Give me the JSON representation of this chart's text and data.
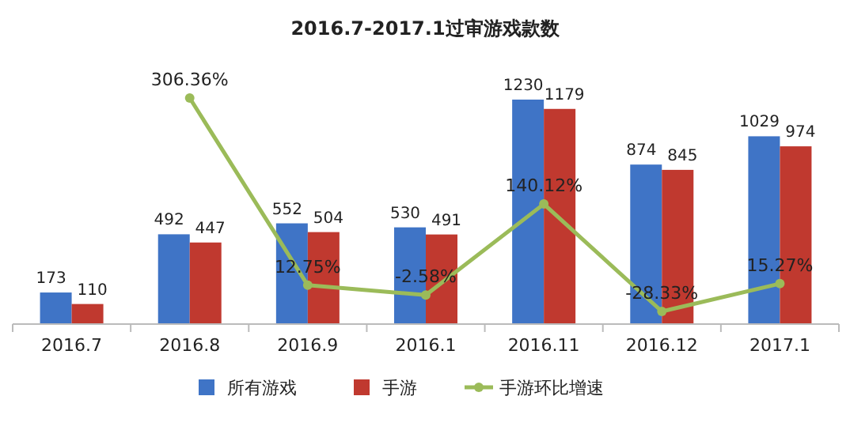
{
  "chart_data": {
    "type": "bar",
    "title": "2016.7-2017.1过审游戏款数",
    "categories": [
      "2016.7",
      "2016.8",
      "2016.9",
      "2016.1",
      "2016.11",
      "2016.12",
      "2017.1"
    ],
    "series": [
      {
        "name": "所有游戏",
        "color": "#3f74c6",
        "values": [
          173,
          492,
          552,
          530,
          1230,
          874,
          1029
        ]
      },
      {
        "name": "手游",
        "color": "#c0392f",
        "values": [
          110,
          447,
          504,
          491,
          1179,
          845,
          974
        ]
      },
      {
        "name": "手游环比增速",
        "type": "line",
        "axis": "y2",
        "color": "#9bbb59",
        "values": [
          null,
          306.36,
          12.75,
          -2.58,
          140.12,
          -28.33,
          15.27
        ],
        "value_labels": [
          null,
          "306.36%",
          "12.75%",
          "-2.58%",
          "140.12%",
          "-28.33%",
          "15.27%"
        ]
      }
    ],
    "data_labels": true,
    "legend": "bottom",
    "marker": "circle"
  }
}
